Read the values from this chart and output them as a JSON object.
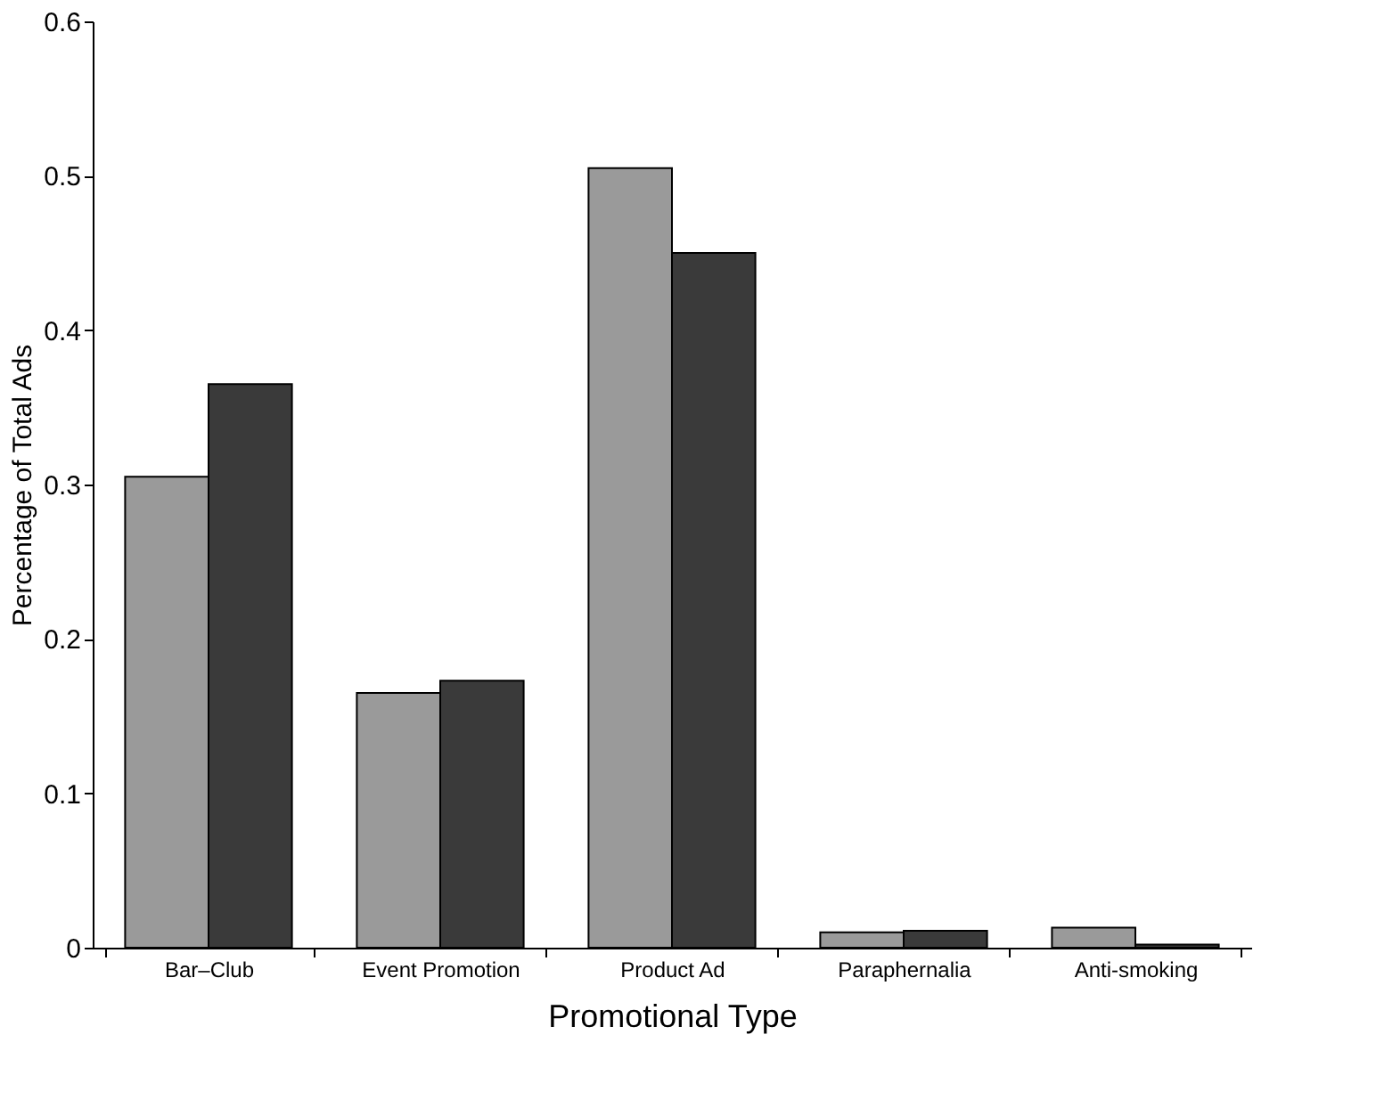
{
  "chart_data": {
    "type": "bar",
    "xlabel": "Promotional Type",
    "ylabel": "Percentage of Total Ads",
    "categories": [
      "Bar–Club",
      "Event Promotion",
      "Product Ad",
      "Paraphernalia",
      "Anti-smoking"
    ],
    "series": [
      {
        "color": "#9a9a9a",
        "values": [
          0.305,
          0.165,
          0.505,
          0.01,
          0.013
        ]
      },
      {
        "color": "#3a3a3a",
        "values": [
          0.365,
          0.173,
          0.45,
          0.011,
          0.002
        ]
      }
    ],
    "ylim": [
      0,
      0.6
    ],
    "yticks": [
      0,
      0.1,
      0.2,
      0.3,
      0.4,
      0.5,
      0.6
    ],
    "grid": false
  }
}
